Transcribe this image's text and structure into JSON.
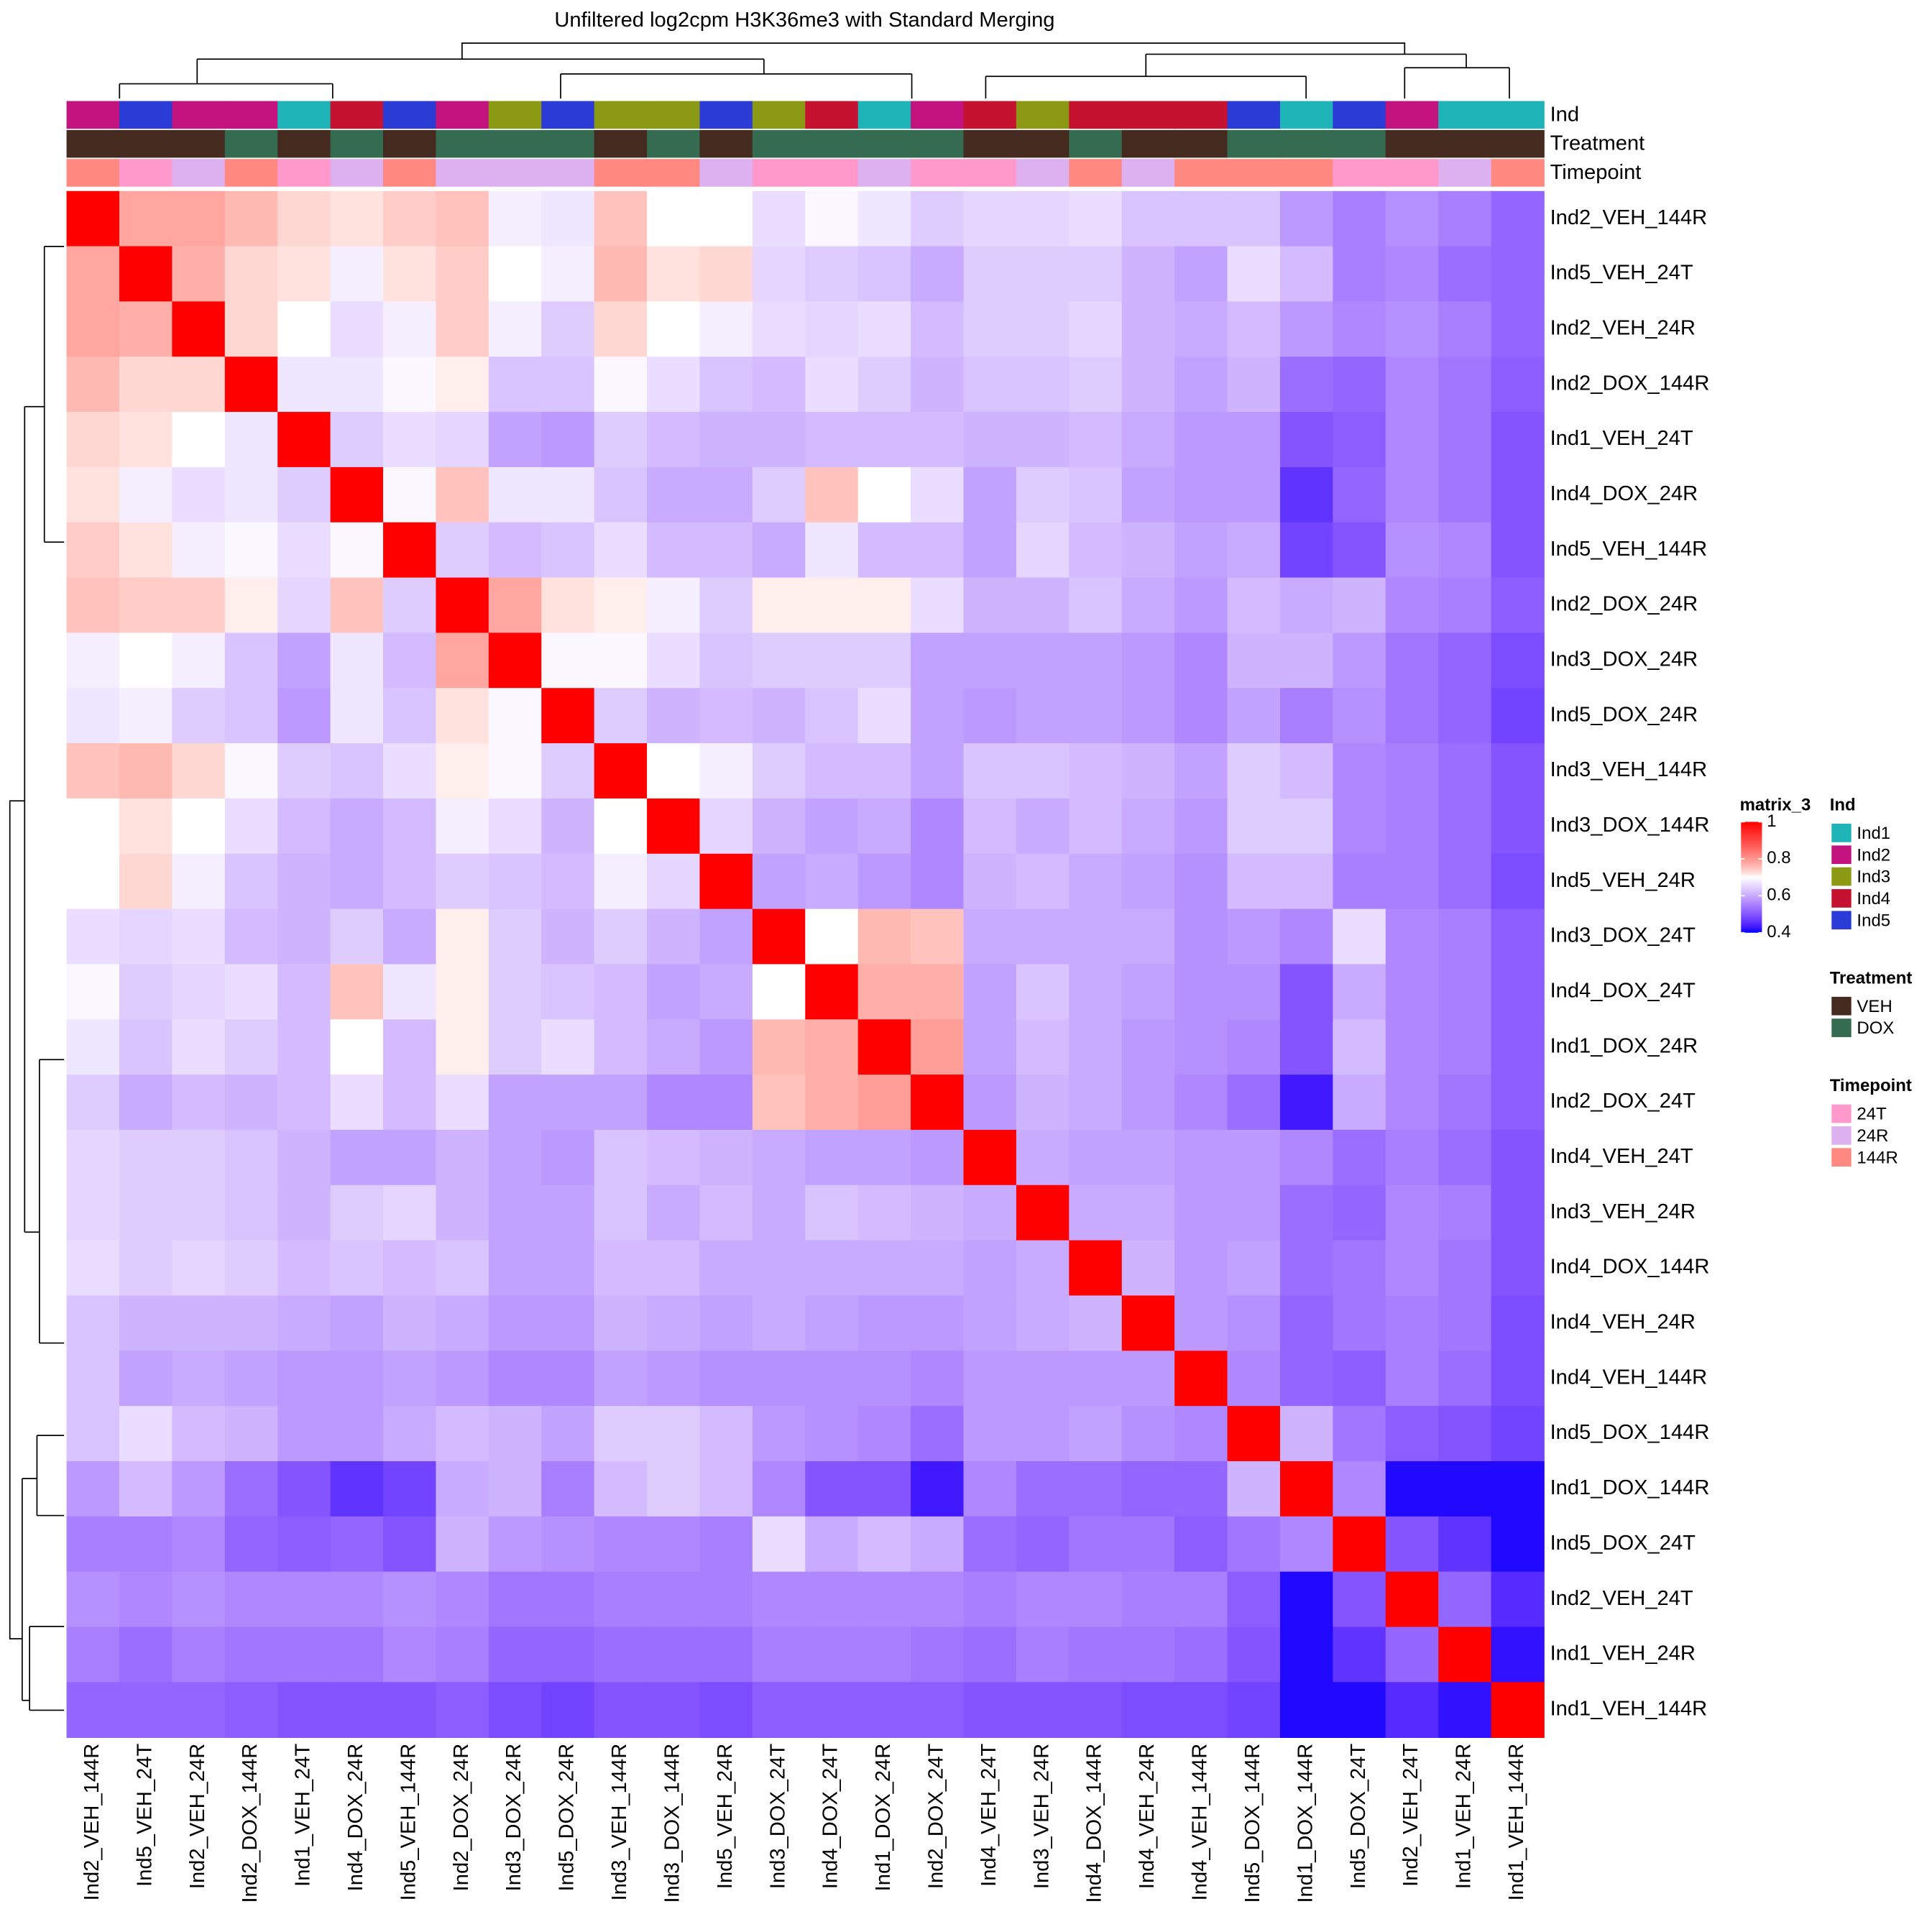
{
  "chart_data": {
    "type": "heatmap",
    "title": "Unfiltered log2cpm H3K36me3 with Standard Merging",
    "labels": [
      "Ind2_VEH_144R",
      "Ind5_VEH_24T",
      "Ind2_VEH_24R",
      "Ind2_DOX_144R",
      "Ind1_VEH_24T",
      "Ind4_DOX_24R",
      "Ind5_VEH_144R",
      "Ind2_DOX_24R",
      "Ind3_DOX_24R",
      "Ind5_DOX_24R",
      "Ind3_VEH_144R",
      "Ind3_DOX_144R",
      "Ind5_VEH_24R",
      "Ind3_DOX_24T",
      "Ind4_DOX_24T",
      "Ind1_DOX_24R",
      "Ind2_DOX_24T",
      "Ind4_VEH_24T",
      "Ind3_VEH_24R",
      "Ind4_DOX_144R",
      "Ind4_VEH_24R",
      "Ind4_VEH_144R",
      "Ind5_DOX_144R",
      "Ind1_DOX_144R",
      "Ind5_DOX_24T",
      "Ind2_VEH_24T",
      "Ind1_VEH_24R",
      "Ind1_VEH_144R"
    ],
    "matrix": [
      [
        1,
        0.78,
        0.78,
        0.76,
        0.73,
        0.72,
        0.74,
        0.75,
        0.68,
        0.67,
        0.75,
        0.7,
        0.7,
        0.66,
        0.69,
        0.67,
        0.64,
        0.65,
        0.65,
        0.66,
        0.63,
        0.63,
        0.63,
        0.58,
        0.55,
        0.57,
        0.55,
        0.52
      ],
      [
        0.78,
        1,
        0.77,
        0.73,
        0.72,
        0.68,
        0.72,
        0.74,
        0.7,
        0.68,
        0.76,
        0.72,
        0.73,
        0.65,
        0.64,
        0.63,
        0.6,
        0.64,
        0.64,
        0.64,
        0.61,
        0.59,
        0.66,
        0.62,
        0.55,
        0.56,
        0.53,
        0.52
      ],
      [
        0.78,
        0.77,
        1,
        0.73,
        0.7,
        0.66,
        0.68,
        0.74,
        0.68,
        0.64,
        0.73,
        0.7,
        0.68,
        0.66,
        0.65,
        0.66,
        0.62,
        0.64,
        0.64,
        0.65,
        0.61,
        0.6,
        0.62,
        0.58,
        0.56,
        0.57,
        0.55,
        0.52
      ],
      [
        0.76,
        0.73,
        0.73,
        1,
        0.67,
        0.67,
        0.69,
        0.71,
        0.63,
        0.63,
        0.69,
        0.66,
        0.63,
        0.62,
        0.66,
        0.64,
        0.61,
        0.63,
        0.63,
        0.64,
        0.61,
        0.59,
        0.61,
        0.53,
        0.52,
        0.56,
        0.54,
        0.51
      ],
      [
        0.73,
        0.72,
        0.7,
        0.67,
        1,
        0.64,
        0.66,
        0.65,
        0.59,
        0.58,
        0.64,
        0.62,
        0.61,
        0.61,
        0.62,
        0.62,
        0.62,
        0.61,
        0.61,
        0.62,
        0.6,
        0.58,
        0.58,
        0.5,
        0.51,
        0.56,
        0.54,
        0.5
      ],
      [
        0.72,
        0.68,
        0.66,
        0.67,
        0.64,
        1,
        0.69,
        0.75,
        0.67,
        0.67,
        0.63,
        0.6,
        0.6,
        0.64,
        0.75,
        0.7,
        0.66,
        0.59,
        0.64,
        0.63,
        0.59,
        0.58,
        0.58,
        0.46,
        0.52,
        0.56,
        0.54,
        0.5
      ],
      [
        0.74,
        0.72,
        0.68,
        0.69,
        0.66,
        0.69,
        1,
        0.64,
        0.62,
        0.63,
        0.66,
        0.62,
        0.62,
        0.6,
        0.67,
        0.62,
        0.62,
        0.59,
        0.65,
        0.62,
        0.61,
        0.59,
        0.6,
        0.48,
        0.5,
        0.57,
        0.56,
        0.5
      ],
      [
        0.75,
        0.74,
        0.74,
        0.71,
        0.65,
        0.75,
        0.64,
        1,
        0.78,
        0.72,
        0.71,
        0.68,
        0.64,
        0.71,
        0.71,
        0.71,
        0.66,
        0.61,
        0.61,
        0.63,
        0.6,
        0.58,
        0.62,
        0.6,
        0.61,
        0.56,
        0.55,
        0.51
      ],
      [
        0.68,
        0.7,
        0.68,
        0.63,
        0.59,
        0.67,
        0.62,
        0.78,
        1,
        0.69,
        0.69,
        0.66,
        0.63,
        0.64,
        0.64,
        0.64,
        0.59,
        0.59,
        0.59,
        0.59,
        0.58,
        0.56,
        0.61,
        0.61,
        0.58,
        0.54,
        0.52,
        0.49
      ],
      [
        0.67,
        0.68,
        0.64,
        0.63,
        0.58,
        0.67,
        0.63,
        0.72,
        0.69,
        1,
        0.64,
        0.61,
        0.62,
        0.61,
        0.63,
        0.66,
        0.59,
        0.58,
        0.59,
        0.59,
        0.58,
        0.56,
        0.59,
        0.55,
        0.57,
        0.54,
        0.52,
        0.48
      ],
      [
        0.75,
        0.76,
        0.73,
        0.69,
        0.64,
        0.63,
        0.66,
        0.71,
        0.69,
        0.64,
        1,
        0.7,
        0.68,
        0.64,
        0.62,
        0.62,
        0.59,
        0.63,
        0.63,
        0.62,
        0.61,
        0.59,
        0.64,
        0.62,
        0.56,
        0.55,
        0.53,
        0.5
      ],
      [
        0.7,
        0.72,
        0.7,
        0.66,
        0.62,
        0.6,
        0.62,
        0.68,
        0.66,
        0.61,
        0.7,
        1,
        0.65,
        0.61,
        0.59,
        0.6,
        0.56,
        0.62,
        0.6,
        0.62,
        0.6,
        0.58,
        0.64,
        0.64,
        0.56,
        0.55,
        0.53,
        0.5
      ],
      [
        0.7,
        0.73,
        0.68,
        0.63,
        0.61,
        0.6,
        0.62,
        0.64,
        0.63,
        0.62,
        0.68,
        0.65,
        1,
        0.59,
        0.6,
        0.58,
        0.56,
        0.61,
        0.62,
        0.6,
        0.59,
        0.57,
        0.62,
        0.62,
        0.55,
        0.55,
        0.53,
        0.49
      ],
      [
        0.66,
        0.65,
        0.66,
        0.62,
        0.61,
        0.64,
        0.6,
        0.71,
        0.64,
        0.61,
        0.64,
        0.61,
        0.59,
        1,
        0.7,
        0.76,
        0.75,
        0.6,
        0.6,
        0.6,
        0.6,
        0.57,
        0.58,
        0.56,
        0.66,
        0.56,
        0.55,
        0.51
      ],
      [
        0.69,
        0.64,
        0.65,
        0.66,
        0.62,
        0.75,
        0.67,
        0.71,
        0.64,
        0.63,
        0.62,
        0.59,
        0.6,
        0.7,
        1,
        0.77,
        0.77,
        0.59,
        0.63,
        0.6,
        0.59,
        0.57,
        0.57,
        0.5,
        0.6,
        0.56,
        0.55,
        0.51
      ],
      [
        0.67,
        0.63,
        0.66,
        0.64,
        0.62,
        0.7,
        0.62,
        0.71,
        0.64,
        0.66,
        0.62,
        0.6,
        0.58,
        0.76,
        0.77,
        1,
        0.79,
        0.59,
        0.62,
        0.6,
        0.58,
        0.57,
        0.56,
        0.5,
        0.62,
        0.56,
        0.55,
        0.51
      ],
      [
        0.64,
        0.6,
        0.62,
        0.61,
        0.62,
        0.66,
        0.62,
        0.66,
        0.59,
        0.59,
        0.59,
        0.56,
        0.56,
        0.75,
        0.77,
        0.79,
        1,
        0.58,
        0.61,
        0.6,
        0.58,
        0.56,
        0.53,
        0.43,
        0.6,
        0.56,
        0.54,
        0.51
      ],
      [
        0.65,
        0.64,
        0.64,
        0.63,
        0.61,
        0.59,
        0.59,
        0.61,
        0.59,
        0.58,
        0.63,
        0.62,
        0.61,
        0.6,
        0.59,
        0.59,
        0.58,
        1,
        0.6,
        0.59,
        0.59,
        0.58,
        0.58,
        0.56,
        0.53,
        0.55,
        0.53,
        0.5
      ],
      [
        0.65,
        0.64,
        0.64,
        0.63,
        0.61,
        0.64,
        0.65,
        0.61,
        0.59,
        0.59,
        0.63,
        0.6,
        0.62,
        0.6,
        0.63,
        0.62,
        0.61,
        0.6,
        1,
        0.6,
        0.6,
        0.58,
        0.58,
        0.53,
        0.52,
        0.56,
        0.55,
        0.5
      ],
      [
        0.66,
        0.64,
        0.65,
        0.64,
        0.62,
        0.63,
        0.62,
        0.63,
        0.59,
        0.59,
        0.62,
        0.62,
        0.6,
        0.6,
        0.6,
        0.6,
        0.6,
        0.59,
        0.6,
        1,
        0.61,
        0.58,
        0.59,
        0.53,
        0.54,
        0.56,
        0.54,
        0.5
      ],
      [
        0.63,
        0.61,
        0.61,
        0.61,
        0.6,
        0.59,
        0.61,
        0.6,
        0.58,
        0.58,
        0.61,
        0.6,
        0.59,
        0.6,
        0.59,
        0.58,
        0.58,
        0.59,
        0.6,
        0.61,
        1,
        0.58,
        0.57,
        0.52,
        0.54,
        0.55,
        0.54,
        0.49
      ],
      [
        0.63,
        0.59,
        0.6,
        0.59,
        0.58,
        0.58,
        0.59,
        0.58,
        0.56,
        0.56,
        0.59,
        0.58,
        0.57,
        0.57,
        0.57,
        0.57,
        0.56,
        0.58,
        0.58,
        0.58,
        0.58,
        1,
        0.56,
        0.52,
        0.51,
        0.55,
        0.53,
        0.49
      ],
      [
        0.63,
        0.66,
        0.62,
        0.61,
        0.58,
        0.58,
        0.6,
        0.62,
        0.61,
        0.59,
        0.64,
        0.64,
        0.62,
        0.58,
        0.57,
        0.56,
        0.53,
        0.58,
        0.58,
        0.59,
        0.57,
        0.56,
        1,
        0.61,
        0.54,
        0.51,
        0.5,
        0.48
      ],
      [
        0.58,
        0.62,
        0.58,
        0.53,
        0.5,
        0.46,
        0.48,
        0.6,
        0.61,
        0.55,
        0.62,
        0.64,
        0.62,
        0.56,
        0.5,
        0.5,
        0.43,
        0.56,
        0.53,
        0.53,
        0.52,
        0.52,
        0.61,
        1,
        0.56,
        0.41,
        0.41,
        0.41
      ],
      [
        0.55,
        0.55,
        0.56,
        0.52,
        0.51,
        0.52,
        0.5,
        0.61,
        0.58,
        0.57,
        0.56,
        0.56,
        0.55,
        0.66,
        0.6,
        0.62,
        0.6,
        0.53,
        0.52,
        0.54,
        0.54,
        0.51,
        0.54,
        0.56,
        1,
        0.5,
        0.46,
        0.41
      ],
      [
        0.57,
        0.56,
        0.57,
        0.56,
        0.56,
        0.56,
        0.57,
        0.56,
        0.54,
        0.54,
        0.55,
        0.55,
        0.55,
        0.56,
        0.56,
        0.56,
        0.56,
        0.55,
        0.56,
        0.56,
        0.55,
        0.55,
        0.51,
        0.41,
        0.5,
        1,
        0.52,
        0.45
      ],
      [
        0.55,
        0.53,
        0.55,
        0.54,
        0.54,
        0.54,
        0.56,
        0.55,
        0.52,
        0.52,
        0.53,
        0.53,
        0.53,
        0.55,
        0.55,
        0.55,
        0.54,
        0.53,
        0.55,
        0.54,
        0.54,
        0.53,
        0.5,
        0.41,
        0.46,
        0.52,
        1,
        0.42
      ],
      [
        0.52,
        0.52,
        0.52,
        0.51,
        0.5,
        0.5,
        0.5,
        0.51,
        0.49,
        0.48,
        0.5,
        0.5,
        0.49,
        0.51,
        0.51,
        0.51,
        0.51,
        0.5,
        0.5,
        0.5,
        0.49,
        0.49,
        0.48,
        0.41,
        0.41,
        0.45,
        0.42,
        1
      ]
    ],
    "color_scale": {
      "name": "matrix_3",
      "breaks": [
        0.4,
        0.7,
        1
      ],
      "colors": [
        "#0000FF",
        "#FFFFFF",
        "#FF0000"
      ],
      "ticks": [
        1,
        0.8,
        0.6,
        0.4
      ]
    },
    "annotations": [
      {
        "name": "Ind",
        "levels": [
          "Ind1",
          "Ind2",
          "Ind3",
          "Ind4",
          "Ind5"
        ],
        "colors": [
          "#1FB5B8",
          "#C2137E",
          "#8B9A12",
          "#C41230",
          "#2B3BD6"
        ],
        "values": [
          "Ind2",
          "Ind5",
          "Ind2",
          "Ind2",
          "Ind1",
          "Ind4",
          "Ind5",
          "Ind2",
          "Ind3",
          "Ind5",
          "Ind3",
          "Ind3",
          "Ind5",
          "Ind3",
          "Ind4",
          "Ind1",
          "Ind2",
          "Ind4",
          "Ind3",
          "Ind4",
          "Ind4",
          "Ind4",
          "Ind5",
          "Ind1",
          "Ind5",
          "Ind2",
          "Ind1",
          "Ind1"
        ]
      },
      {
        "name": "Treatment",
        "levels": [
          "VEH",
          "DOX"
        ],
        "colors": [
          "#452A20",
          "#356B50"
        ],
        "values": [
          "VEH",
          "VEH",
          "VEH",
          "DOX",
          "VEH",
          "DOX",
          "VEH",
          "DOX",
          "DOX",
          "DOX",
          "VEH",
          "DOX",
          "VEH",
          "DOX",
          "DOX",
          "DOX",
          "DOX",
          "VEH",
          "VEH",
          "DOX",
          "VEH",
          "VEH",
          "DOX",
          "DOX",
          "DOX",
          "VEH",
          "VEH",
          "VEH"
        ]
      },
      {
        "name": "Timepoint",
        "levels": [
          "24T",
          "24R",
          "144R"
        ],
        "colors": [
          "#FF99CC",
          "#DDB0F0",
          "#FF8880"
        ],
        "values": [
          "144R",
          "24T",
          "24R",
          "144R",
          "24T",
          "24R",
          "144R",
          "24R",
          "24R",
          "24R",
          "144R",
          "144R",
          "24R",
          "24T",
          "24T",
          "24R",
          "24T",
          "24T",
          "24R",
          "144R",
          "24R",
          "144R",
          "144R",
          "144R",
          "24T",
          "24T",
          "24R",
          "144R"
        ]
      }
    ]
  }
}
